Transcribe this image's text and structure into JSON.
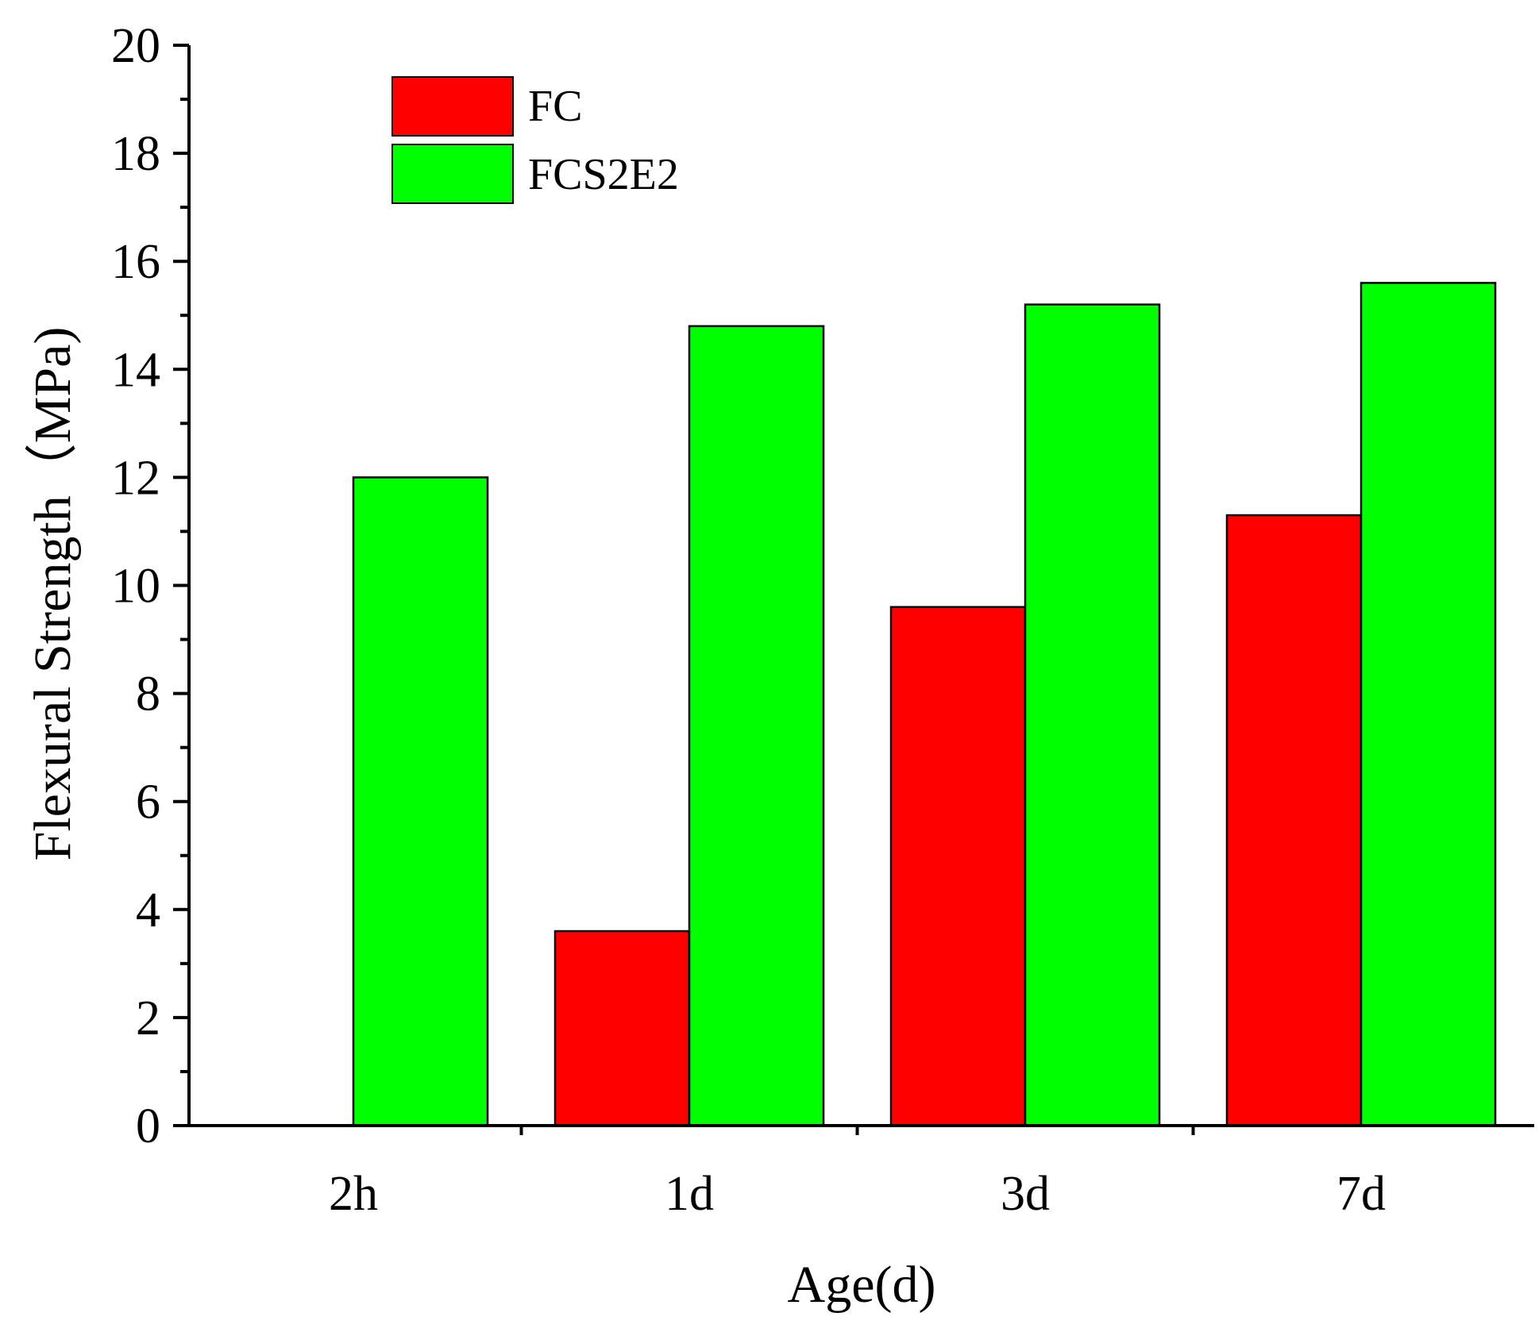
{
  "chart_data": {
    "type": "bar",
    "title": "",
    "xlabel": "Age(d)",
    "ylabel": "Flexural Strength（MPa)",
    "categories": [
      "2h",
      "1d",
      "3d",
      "7d"
    ],
    "series": [
      {
        "name": "FC",
        "color": "#ff0000",
        "values": [
          0,
          3.6,
          9.6,
          11.3
        ]
      },
      {
        "name": "FCS2E2",
        "color": "#00ff00",
        "values": [
          12.0,
          14.8,
          15.2,
          15.6
        ]
      }
    ],
    "ylim": [
      0,
      20
    ],
    "yticks": [
      "0",
      "2",
      "4",
      "6",
      "8",
      "10",
      "12",
      "14",
      "16",
      "18",
      "20"
    ],
    "grid": false,
    "legend_position": "top-left"
  }
}
